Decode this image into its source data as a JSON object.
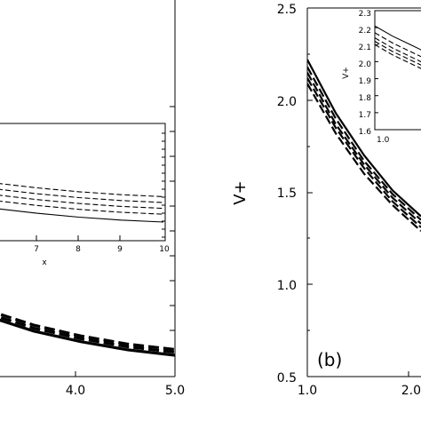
{
  "chart_data": [
    {
      "panel": "a (main, partially visible)",
      "type": "line",
      "x_tick_labels": [
        "4.0",
        "5.0"
      ],
      "series": [
        {
          "line_style": "solid",
          "x": [
            3.0,
            3.5,
            4.0,
            4.5,
            5.0
          ],
          "y": [
            0.64,
            0.59,
            0.555,
            0.528,
            0.51
          ]
        },
        {
          "line_style": "dashed",
          "x": [
            3.0,
            3.5,
            4.0,
            4.5,
            5.0
          ],
          "y": [
            0.65,
            0.6,
            0.565,
            0.538,
            0.52
          ]
        },
        {
          "line_style": "dashed",
          "x": [
            3.0,
            3.5,
            4.0,
            4.5,
            5.0
          ],
          "y": [
            0.66,
            0.61,
            0.574,
            0.547,
            0.529
          ]
        }
      ]
    },
    {
      "panel": "a (inset, partially visible)",
      "type": "line",
      "xlabel": "x",
      "x_tick_labels": [
        "7",
        "8",
        "9",
        "10"
      ],
      "series": [
        {
          "line_style": "solid",
          "x": [
            5.5,
            6,
            7,
            8,
            9,
            10
          ],
          "y": [
            0.56,
            0.545,
            0.52,
            0.5,
            0.485,
            0.475
          ]
        },
        {
          "line_style": "dashed",
          "x": [
            5.5,
            6,
            7,
            8,
            9,
            10
          ],
          "y": [
            0.6,
            0.585,
            0.56,
            0.54,
            0.525,
            0.515
          ]
        },
        {
          "line_style": "dashed",
          "x": [
            5.5,
            6,
            7,
            8,
            9,
            10
          ],
          "y": [
            0.63,
            0.615,
            0.59,
            0.57,
            0.555,
            0.545
          ]
        },
        {
          "line_style": "dashed",
          "x": [
            5.5,
            6,
            7,
            8,
            9,
            10
          ],
          "y": [
            0.66,
            0.645,
            0.62,
            0.6,
            0.585,
            0.575
          ]
        },
        {
          "line_style": "dashed",
          "x": [
            5.5,
            6,
            7,
            8,
            9,
            10
          ],
          "y": [
            0.69,
            0.675,
            0.65,
            0.63,
            0.615,
            0.605
          ]
        }
      ]
    },
    {
      "panel": "b (main)",
      "type": "line",
      "ylabel": "V+",
      "panel_label": "(b)",
      "xlim": [
        1.0,
        2.0
      ],
      "ylim": [
        0.5,
        2.5
      ],
      "x_tick_labels": [
        "1.0",
        "2.0"
      ],
      "y_tick_labels": [
        "0.5",
        "1.0",
        "1.5",
        "2.0",
        "2.5"
      ],
      "series": [
        {
          "line_style": "solid",
          "x": [
            1.0,
            1.25,
            1.5,
            1.75,
            2.0
          ],
          "y": [
            2.22,
            1.93,
            1.7,
            1.51,
            1.37
          ]
        },
        {
          "line_style": "dashed",
          "x": [
            1.0,
            1.25,
            1.5,
            1.75,
            2.0
          ],
          "y": [
            2.18,
            1.9,
            1.67,
            1.49,
            1.35
          ]
        },
        {
          "line_style": "dashed",
          "x": [
            1.0,
            1.25,
            1.5,
            1.75,
            2.0
          ],
          "y": [
            2.15,
            1.87,
            1.65,
            1.47,
            1.33
          ]
        },
        {
          "line_style": "dashed",
          "x": [
            1.0,
            1.25,
            1.5,
            1.75,
            2.0
          ],
          "y": [
            2.12,
            1.85,
            1.63,
            1.45,
            1.31
          ]
        },
        {
          "line_style": "dashed",
          "x": [
            1.0,
            1.25,
            1.5,
            1.75,
            2.0
          ],
          "y": [
            2.09,
            1.82,
            1.6,
            1.43,
            1.29
          ]
        }
      ]
    },
    {
      "panel": "b (inset, partially visible)",
      "type": "line",
      "ylabel": "V+",
      "xlim": [
        1.0,
        1.3
      ],
      "ylim": [
        1.6,
        2.3
      ],
      "x_tick_labels": [
        "1.0"
      ],
      "y_tick_labels": [
        "1.6",
        "1.7",
        "1.8",
        "1.9",
        "2.0",
        "2.1",
        "2.2",
        "2.3"
      ],
      "series": [
        {
          "line_style": "solid",
          "x": [
            1.0,
            1.1,
            1.2,
            1.3
          ],
          "y": [
            2.21,
            2.15,
            2.1,
            2.05
          ]
        },
        {
          "line_style": "dashed",
          "x": [
            1.0,
            1.1,
            1.2,
            1.3
          ],
          "y": [
            2.17,
            2.11,
            2.06,
            2.01
          ]
        },
        {
          "line_style": "dashed",
          "x": [
            1.0,
            1.1,
            1.2,
            1.3
          ],
          "y": [
            2.14,
            2.08,
            2.03,
            1.98
          ]
        },
        {
          "line_style": "dashed",
          "x": [
            1.0,
            1.1,
            1.2,
            1.3
          ],
          "y": [
            2.12,
            2.06,
            2.01,
            1.96
          ]
        },
        {
          "line_style": "dashed",
          "x": [
            1.0,
            1.1,
            1.2,
            1.3
          ],
          "y": [
            2.1,
            2.04,
            1.99,
            1.94
          ]
        }
      ]
    }
  ]
}
